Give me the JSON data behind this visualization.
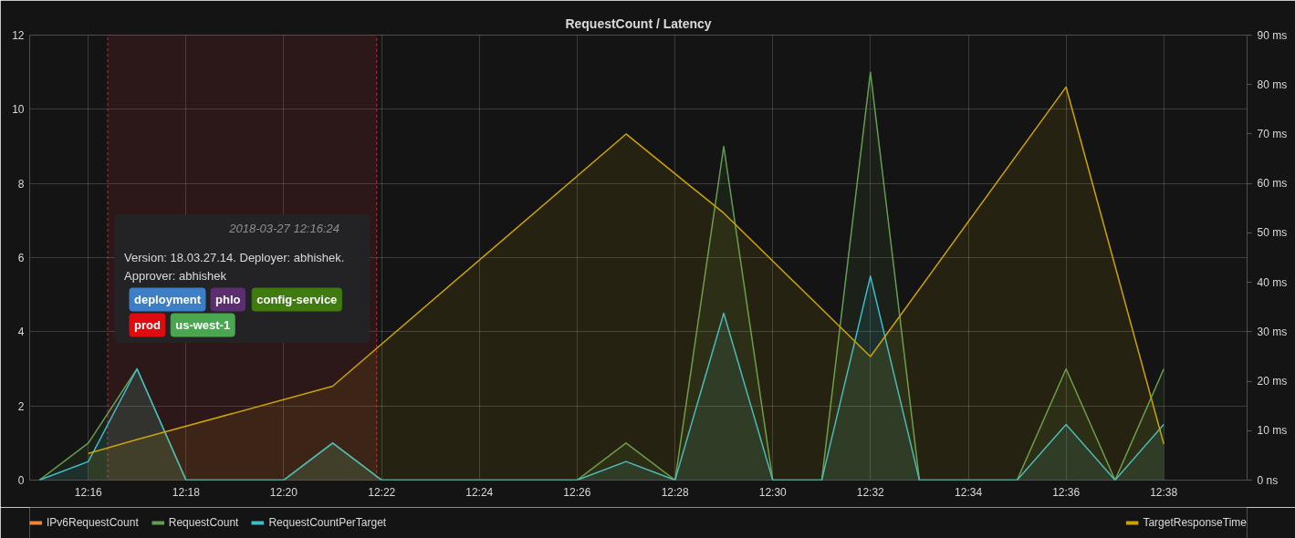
{
  "chart_data": {
    "type": "area",
    "title": "RequestCount / Latency",
    "x": [
      12.25,
      12.2667,
      12.2833,
      12.3,
      12.3167,
      12.3333,
      12.35,
      12.3667,
      12.3833,
      12.4,
      12.4167,
      12.4333,
      12.45,
      12.4667,
      12.4833,
      12.5,
      12.5167,
      12.5333,
      12.55,
      12.5667,
      12.5833,
      12.6,
      12.6167,
      12.6333
    ],
    "xlim": [
      12.2467,
      12.6617
    ],
    "xticks": [
      {
        "value": 12.2667,
        "label": "12:16"
      },
      {
        "value": 12.3,
        "label": "12:18"
      },
      {
        "value": 12.3333,
        "label": "12:20"
      },
      {
        "value": 12.3667,
        "label": "12:22"
      },
      {
        "value": 12.4,
        "label": "12:24"
      },
      {
        "value": 12.4333,
        "label": "12:26"
      },
      {
        "value": 12.4667,
        "label": "12:28"
      },
      {
        "value": 12.5,
        "label": "12:30"
      },
      {
        "value": 12.5333,
        "label": "12:32"
      },
      {
        "value": 12.5667,
        "label": "12:34"
      },
      {
        "value": 12.6,
        "label": "12:36"
      },
      {
        "value": 12.6333,
        "label": "12:38"
      }
    ],
    "ylim": [
      0,
      12
    ],
    "yticks": [
      0,
      2,
      4,
      6,
      8,
      10,
      12
    ],
    "y2lim": [
      0,
      90
    ],
    "y2ticks": [
      {
        "value": 0,
        "label": "0 ns"
      },
      {
        "value": 10,
        "label": "10 ms"
      },
      {
        "value": 20,
        "label": "20 ms"
      },
      {
        "value": 30,
        "label": "30 ms"
      },
      {
        "value": 40,
        "label": "40 ms"
      },
      {
        "value": 50,
        "label": "50 ms"
      },
      {
        "value": 60,
        "label": "60 ms"
      },
      {
        "value": 70,
        "label": "70 ms"
      },
      {
        "value": 80,
        "label": "80 ms"
      },
      {
        "value": 90,
        "label": "90 ms"
      }
    ],
    "series": [
      {
        "name": "IPv6RequestCount",
        "color": "#ef843c",
        "values": [
          null,
          null,
          null,
          null,
          null,
          null,
          null,
          null,
          null,
          null,
          null,
          null,
          null,
          null,
          null,
          null,
          null,
          null,
          null,
          null,
          null,
          null,
          null,
          null
        ]
      },
      {
        "name": "RequestCount",
        "color": "#629e51",
        "values": [
          0,
          1,
          3,
          0,
          0,
          0,
          1,
          0,
          0,
          0,
          0,
          0,
          1,
          0,
          9,
          0,
          0,
          11,
          0,
          0,
          0,
          3,
          0,
          3
        ]
      },
      {
        "name": "RequestCountPerTarget",
        "color": "#3fbccb",
        "values": [
          0,
          0.5,
          3,
          0,
          0,
          0,
          1,
          0,
          0,
          0,
          0,
          0,
          0.5,
          0,
          4.5,
          0,
          0,
          5.5,
          0,
          0,
          0,
          1.5,
          0,
          1.5
        ]
      },
      {
        "name": "TargetResponseTime",
        "color": "#cca300",
        "axis": "y2",
        "x": [
          12.2667,
          12.2833,
          12.35,
          12.45,
          12.4833,
          12.5333,
          12.6,
          12.6333
        ],
        "values": [
          5.4,
          8.2,
          19,
          70,
          54,
          25,
          79.5,
          7.3
        ]
      }
    ],
    "bands": [
      {
        "axis": "x",
        "from": 12.2733,
        "to": 12.365,
        "color": "#e02f44",
        "label": "Version: 18.03.27.14. Deployer: abhishek. Approver: abhishek"
      }
    ],
    "annotations": [
      "2018-03-27 12:16:24",
      "deployment",
      "phlo",
      "config-service",
      "prod",
      "us-west-1"
    ],
    "grid": true,
    "legend": "bottom"
  }
}
